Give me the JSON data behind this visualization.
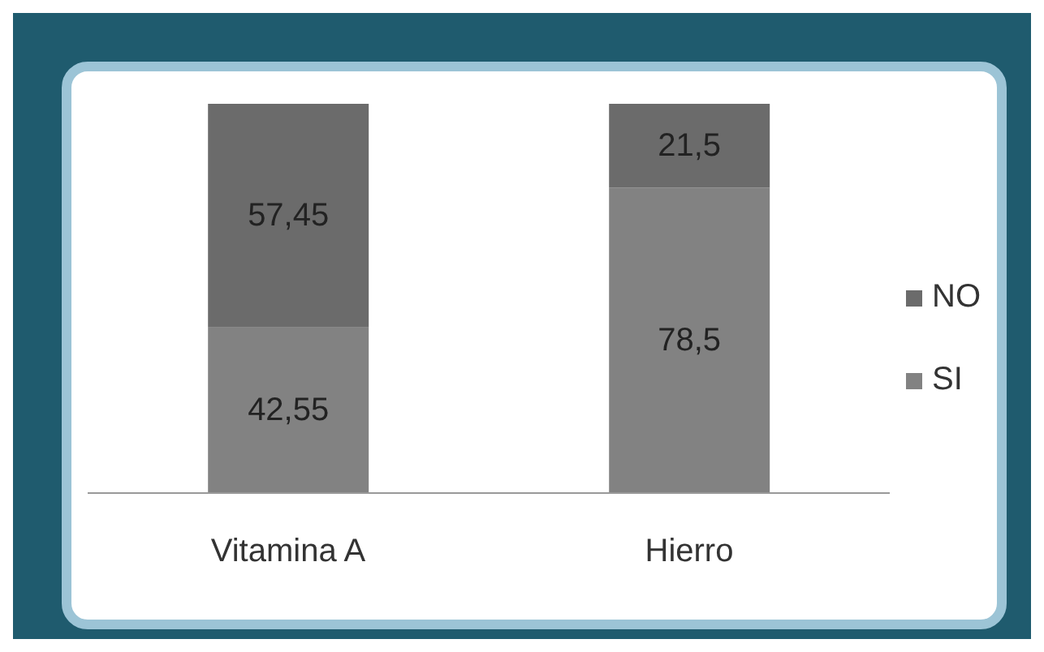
{
  "chart_data": {
    "type": "bar",
    "stacked": true,
    "categories": [
      "Vitamina A",
      "Hierro"
    ],
    "series": [
      {
        "name": "SI",
        "color": "#828282",
        "values": [
          42.55,
          78.5
        ],
        "value_labels": [
          "42,55",
          "78,5"
        ]
      },
      {
        "name": "NO",
        "color": "#6b6b6b",
        "values": [
          57.45,
          21.5
        ],
        "value_labels": [
          "57,45",
          "21,5"
        ]
      }
    ],
    "legend": "right"
  }
}
